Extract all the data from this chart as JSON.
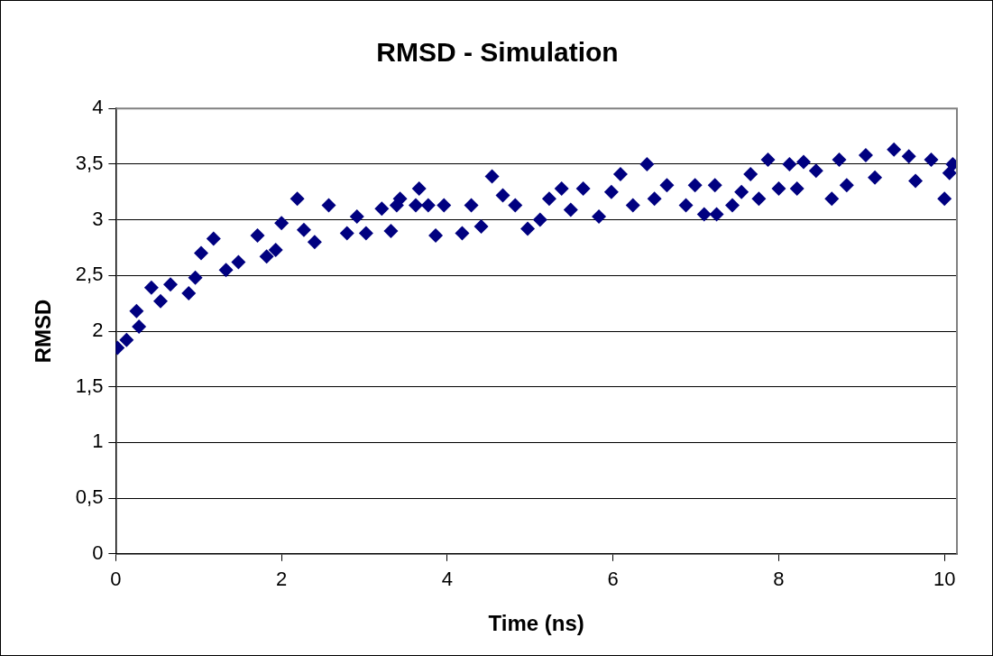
{
  "chart_data": {
    "type": "scatter",
    "title": "RMSD - Simulation",
    "xlabel": "Time (ns)",
    "ylabel": "RMSD",
    "xlim": [
      0,
      10.15
    ],
    "xticks": [
      0,
      2,
      4,
      6,
      8,
      10
    ],
    "ylim": [
      0,
      4
    ],
    "yticks": [
      0,
      {
        "value": 0.5,
        "label": "0,5"
      },
      1,
      {
        "value": 1.5,
        "label": "1,5"
      },
      2,
      {
        "value": 2.5,
        "label": "2,5"
      },
      3,
      {
        "value": 3.5,
        "label": "3,5"
      },
      4
    ],
    "grid": "y",
    "legend": false,
    "marker": "diamond",
    "series": [
      {
        "color": "#000080",
        "x": [
          0.02,
          0.13,
          0.25,
          0.28,
          0.43,
          0.54,
          0.66,
          0.88,
          0.96,
          1.03,
          1.18,
          1.33,
          1.48,
          1.71,
          1.82,
          1.93,
          2.0,
          2.19,
          2.27,
          2.4,
          2.57,
          2.79,
          2.91,
          3.02,
          3.21,
          3.32,
          3.39,
          3.43,
          3.62,
          3.66,
          3.77,
          3.86,
          3.96,
          4.18,
          4.29,
          4.41,
          4.54,
          4.67,
          4.82,
          4.97,
          5.12,
          5.23,
          5.38,
          5.49,
          5.64,
          5.83,
          5.98,
          6.09,
          6.24,
          6.41,
          6.5,
          6.65,
          6.88,
          6.99,
          7.1,
          7.23,
          7.25,
          7.44,
          7.55,
          7.66,
          7.76,
          7.87,
          8.0,
          8.13,
          8.22,
          8.3,
          8.45,
          8.64,
          8.73,
          8.82,
          9.05,
          9.16,
          9.39,
          9.57,
          9.65,
          9.84,
          10.0,
          10.06,
          10.1
        ],
        "values": [
          1.85,
          1.92,
          2.18,
          2.04,
          2.39,
          2.27,
          2.42,
          2.34,
          2.48,
          2.7,
          2.83,
          2.55,
          2.62,
          2.86,
          2.67,
          2.73,
          2.97,
          3.19,
          2.91,
          2.8,
          3.13,
          2.88,
          3.03,
          2.88,
          3.1,
          2.9,
          3.13,
          3.19,
          3.13,
          3.28,
          3.13,
          2.86,
          3.13,
          2.88,
          3.13,
          2.94,
          3.39,
          3.22,
          3.13,
          2.92,
          3.0,
          3.19,
          3.28,
          3.09,
          3.28,
          3.03,
          3.25,
          3.41,
          3.13,
          3.5,
          3.19,
          3.31,
          3.13,
          3.31,
          3.05,
          3.31,
          3.05,
          3.13,
          3.25,
          3.41,
          3.19,
          3.54,
          3.28,
          3.5,
          3.28,
          3.52,
          3.44,
          3.19,
          3.54,
          3.31,
          3.58,
          3.38,
          3.63,
          3.57,
          3.35,
          3.54,
          3.19,
          3.42,
          3.5
        ]
      }
    ]
  }
}
